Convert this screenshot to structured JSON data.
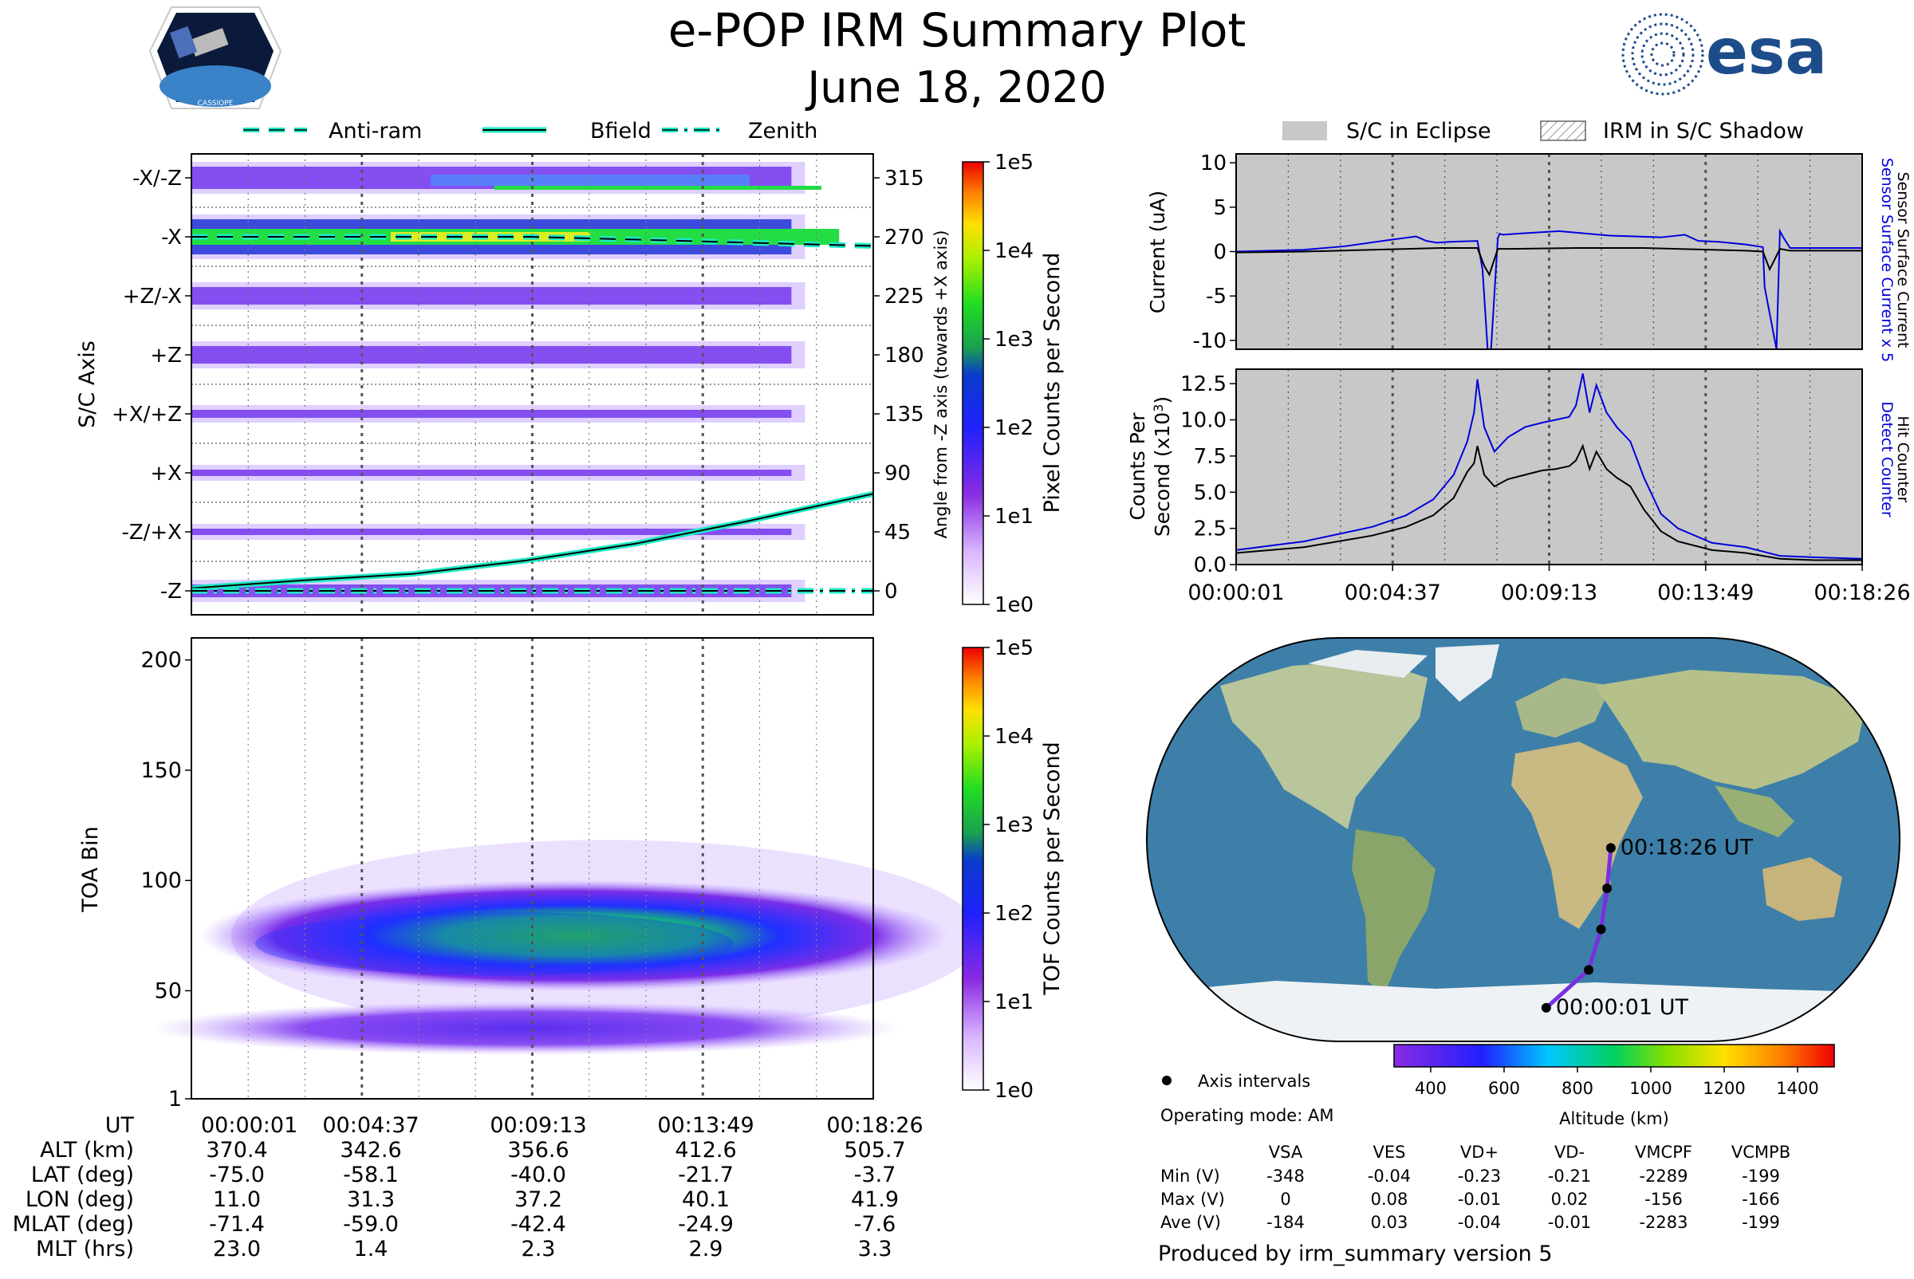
{
  "header": {
    "title": "e-POP IRM Summary Plot",
    "date": "June 18, 2020",
    "left_logo_text": "CASSIOPE",
    "right_logo_text": "esa"
  },
  "legend_left": {
    "items": [
      "Anti-ram",
      "Bfield",
      "Zenith"
    ]
  },
  "legend_right": {
    "items": [
      "S/C in Eclipse",
      "IRM in S/C Shadow"
    ]
  },
  "colors": {
    "bfield": "#1de9c5",
    "eclipse": "#c8c8c8",
    "sensor_current": "#0000dd",
    "track": "#7a2ee0",
    "ocean": "#3d7fa8",
    "land": "#b9c59a"
  },
  "ut_ticks": [
    "00:00:01",
    "00:04:37",
    "00:09:13",
    "00:13:49",
    "00:18:26"
  ],
  "chart_data": [
    {
      "type": "heatmap",
      "name": "sc-axis-pixel-counts",
      "ylabel": "S/C Axis",
      "y_categories": [
        "-X/-Z",
        "-X",
        "+Z/-X",
        "+Z",
        "+X/+Z",
        "+X",
        "-Z/+X",
        "-Z"
      ],
      "right_axis_label": "Angle from -Z axis (towards +X axis)",
      "right_ticks": [
        315,
        270,
        225,
        180,
        135,
        90,
        45,
        0
      ],
      "colorbar": {
        "label": "Pixel Counts per Second",
        "ticks": [
          "1e5",
          "1e4",
          "1e3",
          "1e2",
          "1e1",
          "1e0"
        ]
      },
      "lines": [
        {
          "name": "Bfield",
          "x_min": [
            0,
            3,
            6,
            9,
            12,
            15,
            18.42
          ],
          "angle_deg": [
            2,
            8,
            13,
            23,
            36,
            53,
            74
          ]
        },
        {
          "name": "Anti-ram",
          "x_min": [
            0,
            9.2,
            18.42
          ],
          "angle_deg": [
            270,
            270,
            263
          ]
        },
        {
          "name": "Zenith",
          "x_min": [
            0,
            9.2,
            18.42
          ],
          "angle_deg": [
            0,
            0,
            0
          ]
        }
      ]
    },
    {
      "type": "heatmap",
      "name": "toa-tof-counts",
      "ylabel": "TOA Bin",
      "yticks": [
        1,
        50,
        100,
        150,
        200
      ],
      "ylim": [
        1,
        210
      ],
      "colorbar": {
        "label": "TOF Counts per Second",
        "ticks": [
          "1e5",
          "1e4",
          "1e3",
          "1e2",
          "1e1",
          "1e0"
        ]
      },
      "main_band_center_toa": 75,
      "secondary_band_center_toa": 33
    },
    {
      "type": "line",
      "name": "sensor-current",
      "ylabel": "Current (uA)",
      "right_label_1": "Sensor Surface Current x 5",
      "right_label_2": "Sensor Surface Current",
      "yticks": [
        10,
        5,
        0,
        -5,
        -10
      ],
      "ylim": [
        -11,
        11
      ],
      "xlim_min": [
        0,
        18.42
      ],
      "series": [
        {
          "name": "Sensor Surface Current x 5",
          "x": [
            0,
            2,
            3.2,
            4.5,
            5.3,
            5.6,
            5.9,
            6.3,
            7.1,
            7.25,
            7.4,
            7.5,
            7.7,
            7.75,
            7.85,
            8.2,
            9.5,
            11,
            12.5,
            13.2,
            13.6,
            14.2,
            15,
            15.5,
            15.55,
            15.9,
            16.0,
            16.1,
            16.3,
            18.42
          ],
          "y": [
            0,
            0.2,
            0.6,
            1.3,
            1.7,
            1.2,
            1.0,
            1.1,
            1.2,
            -2,
            -12,
            -12,
            1.5,
            2.0,
            1.9,
            2.0,
            2.3,
            1.8,
            1.6,
            1.9,
            1.2,
            1.1,
            0.8,
            0.5,
            -4,
            -11,
            2.3,
            1.6,
            0.4,
            0.4
          ]
        },
        {
          "name": "Sensor Surface Current",
          "x": [
            0,
            2,
            4,
            6,
            7.1,
            7.3,
            7.45,
            7.7,
            8,
            10,
            12,
            14,
            15,
            15.5,
            15.7,
            16,
            16.3,
            18.42
          ],
          "y": [
            -0.1,
            0,
            0.2,
            0.4,
            0.4,
            -1.6,
            -2.6,
            0.3,
            0.3,
            0.4,
            0.4,
            0.2,
            0.1,
            0,
            -2,
            0.3,
            0.1,
            0.1
          ]
        }
      ]
    },
    {
      "type": "line",
      "name": "counter-rates",
      "ylabel": "Counts Per Second (x10^3)",
      "right_label_1": "Detect Counter",
      "right_label_2": "Hit Counter",
      "yticks": [
        "12.5",
        "10.0",
        "7.5",
        "5.0",
        "2.5",
        "0.0"
      ],
      "ylim": [
        0,
        13.5
      ],
      "xlim_min": [
        0,
        18.42
      ],
      "series": [
        {
          "name": "Detect Counter",
          "x": [
            0,
            1,
            2,
            3,
            4,
            5,
            5.8,
            6.4,
            6.8,
            7.0,
            7.1,
            7.3,
            7.6,
            8,
            8.5,
            9,
            9.4,
            9.8,
            10,
            10.2,
            10.4,
            10.6,
            10.9,
            11.2,
            11.6,
            12,
            12.5,
            13,
            14,
            15,
            15.5,
            16,
            17,
            18.42
          ],
          "y": [
            1.0,
            1.3,
            1.6,
            2.1,
            2.6,
            3.4,
            4.5,
            6.2,
            8.5,
            10.5,
            12.8,
            9.5,
            7.8,
            8.8,
            9.5,
            9.8,
            10,
            10.2,
            11,
            13.2,
            10.5,
            12.4,
            10.5,
            9.5,
            8.5,
            6.0,
            3.5,
            2.5,
            1.5,
            1.2,
            0.9,
            0.6,
            0.5,
            0.4
          ]
        },
        {
          "name": "Hit Counter",
          "x": [
            0,
            1,
            2,
            3,
            4,
            5,
            5.8,
            6.4,
            6.8,
            7.0,
            7.1,
            7.3,
            7.6,
            8,
            8.5,
            9,
            9.4,
            9.8,
            10,
            10.2,
            10.4,
            10.6,
            10.9,
            11.2,
            11.6,
            12,
            12.5,
            13,
            14,
            15,
            15.5,
            16,
            17,
            18.42
          ],
          "y": [
            0.8,
            1.0,
            1.2,
            1.6,
            2.0,
            2.6,
            3.4,
            4.6,
            6.4,
            7.0,
            8.2,
            6.2,
            5.4,
            5.9,
            6.2,
            6.5,
            6.6,
            6.8,
            7.2,
            8.2,
            6.6,
            7.8,
            6.6,
            6.0,
            5.4,
            3.8,
            2.3,
            1.6,
            1.0,
            0.8,
            0.6,
            0.4,
            0.3,
            0.3
          ]
        }
      ],
      "xticks": [
        "00:00:01",
        "00:04:37",
        "00:09:13",
        "00:13:49",
        "00:18:26"
      ]
    },
    {
      "type": "line",
      "name": "orbit-track-map",
      "x_lon": [
        11.0,
        31.3,
        37.2,
        40.1,
        41.9
      ],
      "y_lat": [
        -75.0,
        -58.1,
        -40.0,
        -21.7,
        -3.7
      ],
      "start_label": "00:00:01 UT",
      "end_label": "00:18:26 UT",
      "colorbar": {
        "label": "Altitude (km)",
        "ticks": [
          "400",
          "600",
          "800",
          "1000",
          "1200",
          "1400"
        ]
      }
    },
    {
      "type": "table",
      "name": "ephemeris-table",
      "rows": [
        {
          "label": "UT",
          "values": [
            "00:00:01",
            "00:04:37",
            "00:09:13",
            "00:13:49",
            "00:18:26"
          ]
        },
        {
          "label": "ALT (km)",
          "values": [
            "370.4",
            "342.6",
            "356.6",
            "412.6",
            "505.7"
          ]
        },
        {
          "label": "LAT (deg)",
          "values": [
            "-75.0",
            "-58.1",
            "-40.0",
            "-21.7",
            "-3.7"
          ]
        },
        {
          "label": "LON (deg)",
          "values": [
            "11.0",
            "31.3",
            "37.2",
            "40.1",
            "41.9"
          ]
        },
        {
          "label": "MLAT (deg)",
          "values": [
            "-71.4",
            "-59.0",
            "-42.4",
            "-24.9",
            "-7.6"
          ]
        },
        {
          "label": "MLT (hrs)",
          "values": [
            "23.0",
            "1.4",
            "2.3",
            "2.9",
            "3.3"
          ]
        }
      ]
    },
    {
      "type": "table",
      "name": "voltage-table",
      "columns": [
        "VSA",
        "VES",
        "VD+",
        "VD-",
        "VMCPF",
        "VCMPB"
      ],
      "rows": [
        {
          "label": "Min (V)",
          "values": [
            "-348",
            "-0.04",
            "-0.23",
            "-0.21",
            "-2289",
            "-199"
          ]
        },
        {
          "label": "Max (V)",
          "values": [
            "0",
            "0.08",
            "-0.01",
            "0.02",
            "-156",
            "-166"
          ]
        },
        {
          "label": "Ave (V)",
          "values": [
            "-184",
            "0.03",
            "-0.04",
            "-0.01",
            "-2283",
            "-199"
          ]
        }
      ]
    }
  ],
  "map_info": {
    "axis_intervals_label": "Axis intervals",
    "operating_mode": "Operating mode: AM"
  },
  "footer": {
    "produced_by": "Produced by irm_summary version 5"
  }
}
